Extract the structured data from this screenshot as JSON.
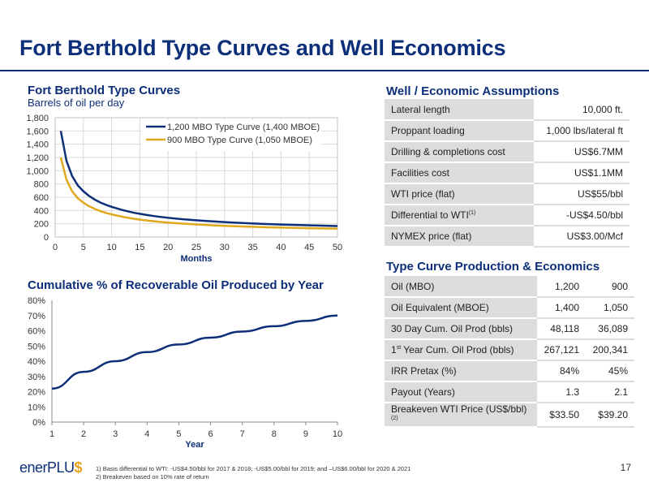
{
  "page": {
    "title": "Fort Berthold Type Curves and Well Economics",
    "page_number": "17",
    "logo": {
      "text_main": "enerPLU",
      "text_accent": "$"
    },
    "footnotes": [
      "1)   Basis differential to WTI: -US$4.50/bbl for 2017 & 2018; -US$5.00/bbl for 2019; and –US$6.00/bbl for 2020 & 2021",
      "2)   Breakeven based on 10% rate of return"
    ]
  },
  "colors": {
    "navy": "#0d2f7a",
    "gold": "#e0a81c",
    "grey": "#dcdcdc"
  },
  "chart_data": [
    {
      "type": "line",
      "title": "Fort Berthold Type Curves",
      "subtitle": "Barrels of oil per day",
      "xlabel": "Months",
      "ylabel": "",
      "xlim": [
        0,
        50
      ],
      "ylim": [
        0,
        1800
      ],
      "xticks": [
        0,
        5,
        10,
        15,
        20,
        25,
        30,
        35,
        40,
        45,
        50
      ],
      "yticks": [
        0,
        200,
        400,
        600,
        800,
        1000,
        1200,
        1400,
        1600,
        1800
      ],
      "ytick_labels": [
        "0",
        "200",
        "400",
        "600",
        "800",
        "1,000",
        "1,200",
        "1,400",
        "1,600",
        "1,800"
      ],
      "grid": true,
      "legend": "top-right",
      "x": [
        1,
        2,
        3,
        4,
        5,
        6,
        7,
        8,
        9,
        10,
        12,
        14,
        16,
        18,
        20,
        22,
        24,
        26,
        28,
        30,
        32,
        34,
        36,
        38,
        40,
        42,
        44,
        46,
        48,
        50
      ],
      "series": [
        {
          "name": "1,200 MBO Type Curve (1,400 MBOE)",
          "color": "#0d2f7a",
          "values": [
            1600,
            1150,
            920,
            780,
            690,
            620,
            565,
            520,
            485,
            455,
            405,
            365,
            335,
            310,
            290,
            273,
            258,
            246,
            235,
            225,
            216,
            208,
            201,
            195,
            189,
            184,
            179,
            174,
            170,
            166
          ]
        },
        {
          "name": "900 MBO Type Curve (1,050 MBOE)",
          "color": "#e0a81c",
          "values": [
            1200,
            865,
            690,
            585,
            518,
            465,
            424,
            390,
            364,
            341,
            304,
            274,
            251,
            233,
            218,
            205,
            194,
            185,
            176,
            169,
            162,
            156,
            151,
            146,
            142,
            138,
            134,
            131,
            128,
            125
          ]
        }
      ]
    },
    {
      "type": "line",
      "title": "Cumulative % of Recoverable Oil Produced by Year",
      "xlabel": "Year",
      "ylabel": "",
      "xlim": [
        1,
        10
      ],
      "ylim": [
        0,
        80
      ],
      "xticks": [
        1,
        2,
        3,
        4,
        5,
        6,
        7,
        8,
        9,
        10
      ],
      "yticks": [
        0,
        10,
        20,
        30,
        40,
        50,
        60,
        70,
        80
      ],
      "ytick_labels": [
        "0%",
        "10%",
        "20%",
        "30%",
        "40%",
        "50%",
        "60%",
        "70%",
        "80%"
      ],
      "grid": false,
      "x": [
        1,
        2,
        3,
        4,
        5,
        6,
        7,
        8,
        9,
        10
      ],
      "series": [
        {
          "name": "",
          "color": "#0d2f7a",
          "values": [
            22,
            33,
            40,
            46,
            51,
            55.5,
            59.5,
            63,
            66.5,
            70
          ]
        }
      ]
    }
  ],
  "assumptions": {
    "title": "Well / Economic Assumptions",
    "rows": [
      {
        "label": "Lateral length",
        "sup": "",
        "value": "10,000 ft."
      },
      {
        "label": "Proppant loading",
        "sup": "",
        "value": "1,000 lbs/lateral ft"
      },
      {
        "label": "Drilling & completions cost",
        "sup": "",
        "value": "US$6.7MM"
      },
      {
        "label": "Facilities cost",
        "sup": "",
        "value": "US$1.1MM"
      },
      {
        "label": "WTI price (flat)",
        "sup": "",
        "value": "US$55/bbl"
      },
      {
        "label": "Differential to WTI",
        "sup": "(1)",
        "value": "-US$4.50/bbl"
      },
      {
        "label": "NYMEX price (flat)",
        "sup": "",
        "value": "US$3.00/Mcf"
      }
    ]
  },
  "economics": {
    "title": "Type Curve Production & Economics",
    "rows": [
      {
        "label_pre": "",
        "label_sup": "",
        "label": "Oil (MBO)",
        "label_tail_sup": "",
        "v1": "1,200",
        "v2": "900"
      },
      {
        "label_pre": "",
        "label_sup": "",
        "label": "Oil Equivalent (MBOE)",
        "label_tail_sup": "",
        "v1": "1,400",
        "v2": "1,050"
      },
      {
        "label_pre": "",
        "label_sup": "",
        "label": "30 Day Cum. Oil Prod (bbls)",
        "label_tail_sup": "",
        "v1": "48,118",
        "v2": "36,089"
      },
      {
        "label_pre": "1",
        "label_sup": "st",
        "label": " Year Cum. Oil Prod (bbls)",
        "label_tail_sup": "",
        "v1": "267,121",
        "v2": "200,341"
      },
      {
        "label_pre": "",
        "label_sup": "",
        "label": "IRR Pretax (%)",
        "label_tail_sup": "",
        "v1": "84%",
        "v2": "45%"
      },
      {
        "label_pre": "",
        "label_sup": "",
        "label": "Payout (Years)",
        "label_tail_sup": "",
        "v1": "1.3",
        "v2": "2.1"
      },
      {
        "label_pre": "",
        "label_sup": "",
        "label": "Breakeven WTI Price (US$/bbl)",
        "label_tail_sup": "(2)",
        "v1": "$33.50",
        "v2": "$39.20"
      }
    ]
  }
}
